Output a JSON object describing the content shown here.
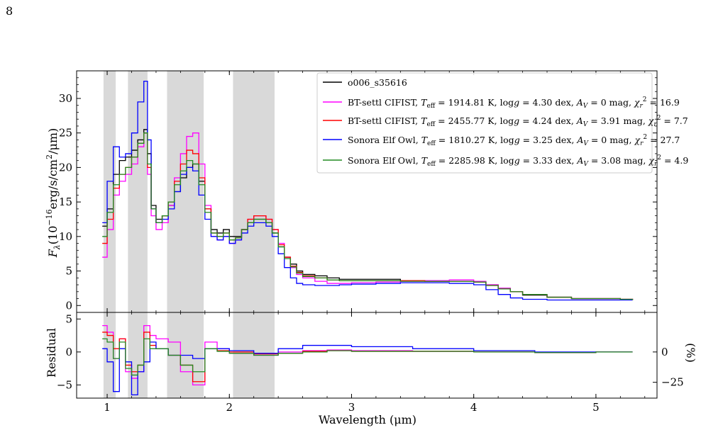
{
  "page": {
    "number": "8"
  },
  "chart_data": [
    {
      "type": "line",
      "panel": "spectrum",
      "xlabel": "Wavelength (μm)",
      "ylabel_parts": {
        "prefix": "F",
        "sub": "λ",
        "mid": "(10",
        "exp": "−16",
        "unit": "erg/s/cm",
        "exp2": "2",
        "end": "/μm)"
      },
      "xlim": [
        0.75,
        5.5
      ],
      "ylim": [
        -1,
        34
      ],
      "yticks": [
        "0",
        "5",
        "10",
        "15",
        "20",
        "25",
        "30"
      ],
      "xticks": [
        "1",
        "2",
        "3",
        "4",
        "5"
      ],
      "shaded_regions": [
        [
          0.97,
          1.07
        ],
        [
          1.17,
          1.33
        ],
        [
          1.49,
          1.79
        ],
        [
          2.03,
          2.37
        ]
      ],
      "legend_position": "top-right",
      "x": [
        0.96,
        1.0,
        1.05,
        1.1,
        1.15,
        1.2,
        1.25,
        1.3,
        1.33,
        1.36,
        1.4,
        1.45,
        1.5,
        1.55,
        1.6,
        1.65,
        1.7,
        1.75,
        1.8,
        1.85,
        1.9,
        1.95,
        2.0,
        2.05,
        2.1,
        2.15,
        2.2,
        2.25,
        2.3,
        2.35,
        2.4,
        2.45,
        2.5,
        2.55,
        2.6,
        2.7,
        2.8,
        2.9,
        3.0,
        3.2,
        3.4,
        3.6,
        3.8,
        4.0,
        4.1,
        4.2,
        4.3,
        4.4,
        4.6,
        4.8,
        5.0,
        5.2,
        5.3
      ],
      "series": [
        {
          "name": "o006_s35616",
          "color": "#000000",
          "values": [
            11.5,
            14.0,
            19.0,
            21.0,
            21.5,
            22.5,
            24.0,
            25.5,
            22.0,
            14.5,
            12.5,
            13.0,
            14.5,
            16.5,
            18.5,
            20.0,
            20.5,
            18.0,
            14.0,
            11.0,
            10.5,
            11.0,
            10.0,
            10.0,
            11.0,
            12.0,
            12.5,
            12.5,
            12.0,
            10.5,
            8.5,
            7.0,
            6.0,
            5.0,
            4.5,
            4.3,
            4.0,
            3.8,
            3.8,
            3.8,
            3.6,
            3.5,
            3.5,
            3.4,
            3.0,
            2.5,
            2.0,
            1.5,
            1.2,
            1.0,
            1.0,
            0.9,
            0.8
          ]
        },
        {
          "name": "BT-settl CIFIST",
          "label_teff": "1914.81 K",
          "label_logg": "4.30 dex",
          "label_av": "0 mag",
          "label_chi2": "16.9",
          "color": "#ff00ff",
          "values": [
            7.0,
            11.0,
            16.0,
            18.0,
            19.0,
            20.5,
            23.0,
            25.0,
            19.0,
            13.0,
            11.0,
            12.0,
            14.5,
            18.5,
            22.0,
            24.5,
            25.0,
            20.5,
            14.5,
            10.0,
            9.5,
            10.0,
            9.0,
            9.5,
            11.0,
            12.5,
            13.0,
            13.0,
            12.5,
            11.0,
            9.0,
            7.0,
            5.5,
            4.5,
            4.0,
            3.5,
            3.2,
            3.2,
            3.3,
            3.4,
            3.5,
            3.6,
            3.7,
            3.5,
            3.0,
            2.5,
            2.0,
            1.6,
            1.2,
            1.0,
            1.0,
            0.9,
            0.8
          ]
        },
        {
          "name": "BT-settl CIFIST",
          "label_teff": "2455.77 K",
          "label_logg": "4.24 dex",
          "label_av": "3.91 mag",
          "label_chi2": "7.7",
          "color": "#ff0000",
          "values": [
            9.0,
            12.5,
            17.0,
            19.0,
            20.0,
            21.5,
            23.5,
            25.0,
            20.0,
            14.0,
            12.0,
            13.0,
            15.0,
            18.0,
            20.5,
            22.5,
            22.0,
            18.5,
            14.0,
            10.5,
            10.0,
            10.5,
            9.5,
            9.8,
            11.0,
            12.5,
            13.0,
            13.0,
            12.5,
            11.0,
            8.8,
            7.0,
            5.7,
            4.8,
            4.3,
            4.0,
            3.7,
            3.6,
            3.6,
            3.6,
            3.6,
            3.5,
            3.5,
            3.4,
            2.9,
            2.4,
            2.0,
            1.6,
            1.2,
            1.0,
            1.0,
            0.9,
            0.8
          ]
        },
        {
          "name": "Sonora Elf Owl",
          "label_teff": "1810.27 K",
          "label_logg": "3.25 dex",
          "label_av": "0 mag",
          "label_chi2": "27.7",
          "color": "#0000ff",
          "values": [
            12.0,
            18.0,
            23.0,
            21.5,
            22.0,
            25.0,
            29.5,
            32.5,
            24.0,
            14.0,
            12.0,
            12.5,
            14.0,
            16.5,
            19.0,
            20.0,
            19.5,
            16.0,
            12.5,
            10.0,
            9.5,
            10.0,
            9.0,
            9.5,
            10.5,
            11.5,
            12.0,
            12.0,
            11.5,
            10.0,
            7.5,
            5.5,
            4.0,
            3.2,
            3.0,
            2.9,
            2.9,
            3.0,
            3.1,
            3.2,
            3.3,
            3.3,
            3.2,
            3.0,
            2.3,
            1.6,
            1.1,
            0.9,
            0.8,
            0.8,
            0.8,
            0.8,
            0.8
          ]
        },
        {
          "name": "Sonora Elf Owl",
          "label_teff": "2285.98 K",
          "label_logg": "3.33 dex",
          "label_av": "3.08 mag",
          "label_chi2": "4.9",
          "color": "#228b22",
          "values": [
            10.0,
            13.5,
            17.5,
            19.0,
            20.0,
            21.5,
            23.5,
            25.0,
            20.5,
            14.0,
            12.0,
            13.0,
            15.0,
            17.5,
            19.5,
            21.0,
            20.5,
            17.5,
            13.5,
            10.5,
            10.0,
            10.5,
            9.5,
            9.8,
            11.0,
            12.0,
            12.5,
            12.5,
            12.0,
            10.5,
            8.5,
            6.8,
            5.6,
            4.7,
            4.2,
            4.0,
            3.7,
            3.6,
            3.6,
            3.6,
            3.5,
            3.5,
            3.5,
            3.4,
            2.9,
            2.4,
            2.0,
            1.6,
            1.2,
            1.0,
            1.0,
            0.9,
            0.8
          ]
        }
      ]
    },
    {
      "type": "line",
      "panel": "residual",
      "ylabel": "Residual",
      "ylabel_right": "(%)",
      "xlim": [
        0.75,
        5.5
      ],
      "ylim": [
        -7,
        6
      ],
      "yticks": [
        "−5",
        "0",
        "5"
      ],
      "yticks_right": [
        "0",
        "−25"
      ],
      "shaded_regions": [
        [
          0.97,
          1.07
        ],
        [
          1.17,
          1.33
        ],
        [
          1.49,
          1.79
        ],
        [
          2.03,
          2.37
        ]
      ],
      "x": [
        0.96,
        1.0,
        1.05,
        1.1,
        1.15,
        1.2,
        1.25,
        1.3,
        1.35,
        1.4,
        1.5,
        1.6,
        1.7,
        1.8,
        1.9,
        2.0,
        2.2,
        2.4,
        2.6,
        2.8,
        3.0,
        3.5,
        4.0,
        4.5,
        5.0,
        5.3
      ],
      "series": [
        {
          "color": "#ff00ff",
          "values": [
            4.0,
            3.0,
            -1.0,
            2.0,
            -3.0,
            -4.0,
            -3.0,
            4.0,
            2.5,
            2.0,
            1.5,
            -3.0,
            -5.0,
            1.5,
            0.5,
            -0.2,
            -0.5,
            0.0,
            0.2,
            0.3,
            0.2,
            0.1,
            0.0,
            -0.1,
            0.0,
            0.0
          ]
        },
        {
          "color": "#ff0000",
          "values": [
            3.0,
            2.5,
            0.5,
            2.0,
            -2.0,
            -3.0,
            -2.0,
            3.0,
            1.0,
            0.5,
            -0.5,
            -2.0,
            -4.5,
            0.5,
            0.2,
            0.0,
            -0.3,
            -0.2,
            0.1,
            0.2,
            0.1,
            0.1,
            0.0,
            -0.1,
            0.0,
            0.0
          ]
        },
        {
          "color": "#0000ff",
          "values": [
            0.5,
            -1.5,
            -6.0,
            0.5,
            -1.5,
            -6.5,
            -3.0,
            -1.5,
            1.5,
            0.5,
            -0.5,
            -0.5,
            -1.0,
            0.5,
            0.5,
            0.2,
            -0.2,
            0.5,
            1.0,
            1.0,
            0.8,
            0.5,
            0.2,
            0.0,
            0.0,
            0.0
          ]
        },
        {
          "color": "#228b22",
          "values": [
            2.0,
            1.5,
            -1.0,
            1.5,
            -2.5,
            -3.5,
            -2.0,
            2.0,
            0.5,
            0.5,
            -0.5,
            -2.0,
            -3.0,
            0.5,
            0.1,
            -0.2,
            -0.5,
            -0.2,
            0.0,
            0.2,
            0.1,
            0.1,
            0.0,
            -0.1,
            0.0,
            0.0
          ]
        }
      ]
    }
  ]
}
